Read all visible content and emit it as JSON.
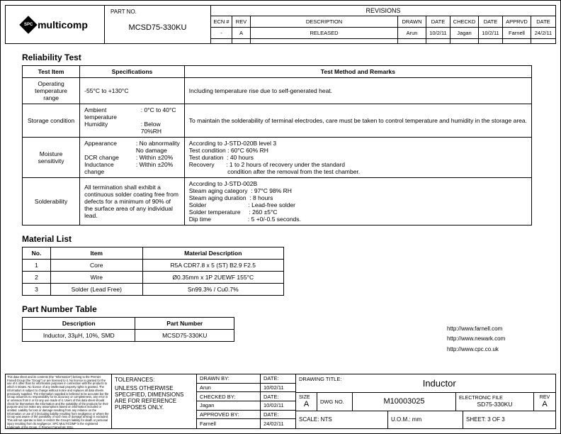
{
  "header": {
    "brand": "multicomp",
    "badge": "SPC",
    "partno_label": "PART NO.",
    "partno": "MCSD75-330KU",
    "revisions_title": "REVISIONS",
    "rev_cols": [
      "ECN #",
      "REV",
      "DESCRIPTION",
      "DRAWN",
      "DATE",
      "CHECKD",
      "DATE",
      "APPRVD",
      "DATE"
    ],
    "rev_row": [
      "-",
      "A",
      "RELEASED",
      "Arun",
      "10/2/11",
      "Jagan",
      "10/2/11",
      "Farnell",
      "24/2/11"
    ]
  },
  "reliability": {
    "title": "Reliability Test",
    "headers": [
      "Test Item",
      "Specifications",
      "Test Method and Remarks"
    ],
    "rows": [
      {
        "item": "Operating temperature range",
        "spec_html": "-55°C to +130°C",
        "rem": "Including temperature rise due to self-generated heat."
      },
      {
        "item": "Storage condition",
        "spec_pairs": [
          [
            "Ambient temperature",
            ": 0°C to 40°C"
          ],
          [
            "Humidity",
            ": Below 70%RH"
          ]
        ],
        "rem": "To maintain the solderability of terminal electrodes, care must be taken to control temperature and humidity in the storage area."
      },
      {
        "item": "Moisture sensitivity",
        "spec_pairs": [
          [
            "Appearance",
            ": No abnormality"
          ],
          [
            "",
            "  No damage"
          ],
          [
            "DCR change",
            ": Within ±20%"
          ],
          [
            "Inductance change",
            ": Within ±20%"
          ]
        ],
        "rem": "According to J-STD-020B level 3\nTest condition : 60°C 60% RH\nTest duration  : 40 hours\nRecovery       : 1 to 2 hours of recovery under the standard\n                       condition after the removal from the test chamber."
      },
      {
        "item": "Solderability",
        "spec_html": "All termination shall exhibit a continuous solder coating free from defects for a minimum of 90% of the surface area of any individual lead.",
        "rem": "According to J-STD-002B\nSteam aging category  : 97°C 98% RH\nSteam aging duration  : 8 hours\nSolder                         : Lead-free solder\nSolder temperature     : 260 ±5°C\nDip time                      : 5 +0/-0.5 seconds."
      }
    ]
  },
  "material": {
    "title": "Material List",
    "headers": [
      "No.",
      "Item",
      "Material Description"
    ],
    "rows": [
      [
        "1",
        "Core",
        "R5A CDR7.8 x 5 (ST) B2.9 F2.5"
      ],
      [
        "2",
        "Wire",
        "Ø0.35mm x 1P 2UEWF 155°C"
      ],
      [
        "3",
        "Solder (Lead Free)",
        "Sn99.3% / Cu0.7%"
      ]
    ]
  },
  "partnum": {
    "title": "Part Number Table",
    "headers": [
      "Description",
      "Part Number"
    ],
    "rows": [
      [
        "Inductor, 33µH, 10%, SMD",
        "MCSD75-330KU"
      ]
    ]
  },
  "links": [
    "http://www.farnell.com",
    "http://www.newark.com",
    "http://www.cpc.co.uk"
  ],
  "foot": {
    "disclaimer": "This data sheet and its contents (the \"Information\") belong to the Premier Farnell Group (the \"Group\") or are licensed to it. No licence is granted for the use of it other than for information purposes in connection with the products to which it relates. No licence of any intellectual property rights is granted. The Information is subject to change without notice and replaces all data sheets previously supplied. The Information supplied is believed to be accurate but the Group assumes no responsibility for its accuracy or completeness, any error in or omission from it or for any use made of it. Users of this data sheet should check for themselves the Information and the suitability of the products for their purpose and not make any assumptions based on information included or omitted. Liability for loss or damage resulting from any reliance on the Information or use of it (including liability resulting from negligence or where the Group was aware of the possibility of such loss or damage arising) is excluded. This will not operate to limit or restrict the Group's liability for death or personal injury resulting from its negligence. SPC MULTICOMP is the registered trademark of the Group. © Premier Farnell plc 2011.",
    "tol_label": "TOLERANCES:",
    "tol_text": "UNLESS OTHERWISE SPECIFIED, DIMENSIONS ARE FOR REFERENCE PURPOSES ONLY.",
    "sigs": [
      {
        "lbl": "DRAWN BY:",
        "val": "Arun",
        "date_lbl": "DATE:",
        "date": "10/02/11"
      },
      {
        "lbl": "CHECKED BY:",
        "val": "Jagan",
        "date_lbl": "DATE:",
        "date": "10/02/11"
      },
      {
        "lbl": "APPROVED BY:",
        "val": "Farnell",
        "date_lbl": "DATE:",
        "date": "24/02/11"
      }
    ],
    "dwg_title_lbl": "DRAWING TITLE:",
    "dwg_title": "Inductor",
    "size_lbl": "SIZE",
    "size": "A",
    "dwgno_lbl": "DWG NO.",
    "dwgno": "M10003025",
    "efile_lbl": "ELECTRONIC FILE",
    "efile": "SD75-330KU",
    "rev_lbl": "REV",
    "rev": "A",
    "scale": "SCALE: NTS",
    "uom": "U.O.M.:  mm",
    "sheet": "SHEET:      3    OF    3"
  }
}
